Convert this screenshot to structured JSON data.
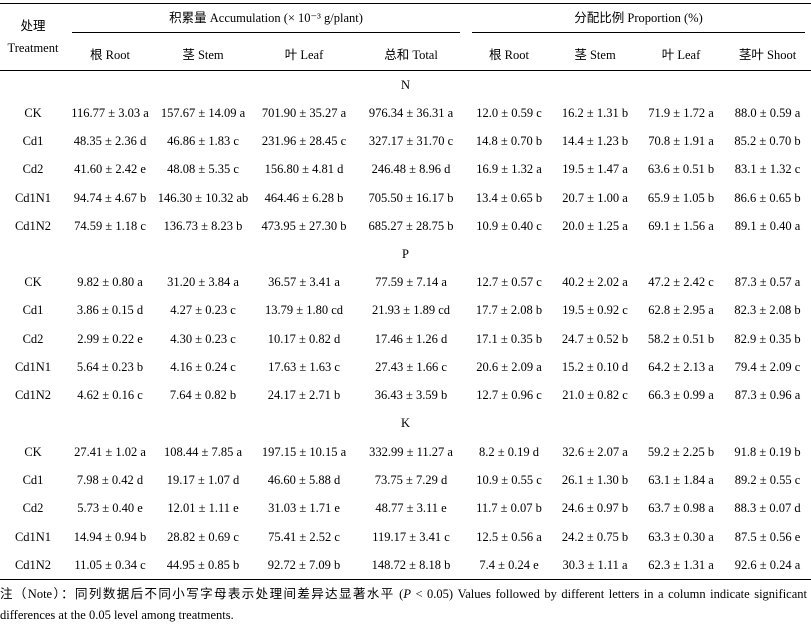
{
  "header": {
    "treatment_cn": "处理",
    "treatment_en": "Treatment",
    "accumulation": "积累量 Accumulation (× 10⁻³ g/plant)",
    "proportion": "分配比例 Proportion (%)",
    "cols": [
      "根 Root",
      "茎 Stem",
      "叶 Leaf",
      "总和 Total",
      "根 Root",
      "茎 Stem",
      "叶 Leaf",
      "茎叶 Shoot"
    ]
  },
  "groups": [
    {
      "label": "N",
      "rows": [
        {
          "t": "CK",
          "v": [
            "116.77 ± 3.03 a",
            "157.67 ± 14.09 a",
            "701.90 ± 35.27 a",
            "976.34 ± 36.31 a",
            "12.0 ± 0.59 c",
            "16.2 ± 1.31 b",
            "71.9 ± 1.72 a",
            "88.0 ± 0.59 a"
          ]
        },
        {
          "t": "Cd1",
          "v": [
            "48.35 ± 2.36 d",
            "46.86 ± 1.83 c",
            "231.96 ± 28.45 c",
            "327.17 ± 31.70 c",
            "14.8 ± 0.70 b",
            "14.4 ± 1.23 b",
            "70.8 ± 1.91 a",
            "85.2 ± 0.70 b"
          ]
        },
        {
          "t": "Cd2",
          "v": [
            "41.60 ± 2.42 e",
            "48.08 ± 5.35 c",
            "156.80 ± 4.81 d",
            "246.48 ± 8.96 d",
            "16.9 ± 1.32 a",
            "19.5 ± 1.47 a",
            "63.6 ± 0.51 b",
            "83.1 ± 1.32 c"
          ]
        },
        {
          "t": "Cd1N1",
          "v": [
            "94.74 ± 4.67 b",
            "146.30 ± 10.32 ab",
            "464.46 ± 6.28 b",
            "705.50 ± 16.17 b",
            "13.4 ± 0.65 b",
            "20.7 ± 1.00 a",
            "65.9 ± 1.05 b",
            "86.6 ± 0.65 b"
          ]
        },
        {
          "t": "Cd1N2",
          "v": [
            "74.59 ± 1.18 c",
            "136.73 ± 8.23 b",
            "473.95 ± 27.30 b",
            "685.27 ± 28.75 b",
            "10.9 ± 0.40 c",
            "20.0 ± 1.25 a",
            "69.1 ± 1.56 a",
            "89.1 ± 0.40 a"
          ]
        }
      ]
    },
    {
      "label": "P",
      "rows": [
        {
          "t": "CK",
          "v": [
            "9.82 ± 0.80 a",
            "31.20 ± 3.84 a",
            "36.57 ± 3.41 a",
            "77.59 ± 7.14 a",
            "12.7 ± 0.57 c",
            "40.2 ± 2.02 a",
            "47.2 ± 2.42 c",
            "87.3 ± 0.57 a"
          ]
        },
        {
          "t": "Cd1",
          "v": [
            "3.86 ± 0.15 d",
            "4.27 ± 0.23 c",
            "13.79 ± 1.80 cd",
            "21.93 ± 1.89 cd",
            "17.7 ± 2.08 b",
            "19.5 ± 0.92 c",
            "62.8 ± 2.95 a",
            "82.3 ± 2.08 b"
          ]
        },
        {
          "t": "Cd2",
          "v": [
            "2.99 ± 0.22 e",
            "4.30 ± 0.23 c",
            "10.17 ± 0.82 d",
            "17.46 ± 1.26 d",
            "17.1 ± 0.35 b",
            "24.7 ± 0.52 b",
            "58.2 ± 0.51 b",
            "82.9 ± 0.35 b"
          ]
        },
        {
          "t": "Cd1N1",
          "v": [
            "5.64 ± 0.23 b",
            "4.16 ± 0.24 c",
            "17.63 ± 1.63 c",
            "27.43 ± 1.66 c",
            "20.6 ± 2.09 a",
            "15.2 ± 0.10 d",
            "64.2 ± 2.13 a",
            "79.4 ± 2.09 c"
          ]
        },
        {
          "t": "Cd1N2",
          "v": [
            "4.62 ± 0.16 c",
            "7.64 ± 0.82 b",
            "24.17 ± 2.71 b",
            "36.43 ± 3.59 b",
            "12.7 ± 0.96 c",
            "21.0 ± 0.82 c",
            "66.3 ± 0.99 a",
            "87.3 ± 0.96 a"
          ]
        }
      ]
    },
    {
      "label": "K",
      "rows": [
        {
          "t": "CK",
          "v": [
            "27.41 ± 1.02 a",
            "108.44 ± 7.85 a",
            "197.15 ± 10.15 a",
            "332.99 ± 11.27 a",
            "8.2 ± 0.19 d",
            "32.6 ± 2.07 a",
            "59.2 ± 2.25 b",
            "91.8 ± 0.19 b"
          ]
        },
        {
          "t": "Cd1",
          "v": [
            "7.98 ± 0.42 d",
            "19.17 ± 1.07 d",
            "46.60 ± 5.88 d",
            "73.75 ± 7.29 d",
            "10.9 ± 0.55 c",
            "26.1 ± 1.30 b",
            "63.1 ± 1.84 a",
            "89.2 ± 0.55 c"
          ]
        },
        {
          "t": "Cd2",
          "v": [
            "5.73 ± 0.40 e",
            "12.01 ± 1.11 e",
            "31.03 ± 1.71 e",
            "48.77 ± 3.11 e",
            "11.7 ± 0.07 b",
            "24.6 ± 0.97 b",
            "63.7 ± 0.98 a",
            "88.3 ± 0.07 d"
          ]
        },
        {
          "t": "Cd1N1",
          "v": [
            "14.94 ± 0.94 b",
            "28.82 ± 0.69 c",
            "75.41 ± 2.52 c",
            "119.17 ± 3.41 c",
            "12.5 ± 0.56 a",
            "24.2 ± 0.75 b",
            "63.3 ± 0.30 a",
            "87.5 ± 0.56 e"
          ]
        },
        {
          "t": "Cd1N2",
          "v": [
            "11.05 ± 0.34 c",
            "44.95 ± 0.85 b",
            "92.72 ± 7.09 b",
            "148.72 ± 8.18 b",
            "7.4 ± 0.24 e",
            "30.3 ± 1.11 a",
            "62.3 ± 1.31 a",
            "92.6 ± 0.24 a"
          ]
        }
      ]
    }
  ],
  "note": {
    "prefix": "注（Note）：同列数据后不同小写字母表示处理间差异达显著水平 (",
    "p_symbol": "P",
    "suffix": " < 0.05) Values followed by different letters in a column indicate significant differences at the 0.05 level among treatments."
  }
}
